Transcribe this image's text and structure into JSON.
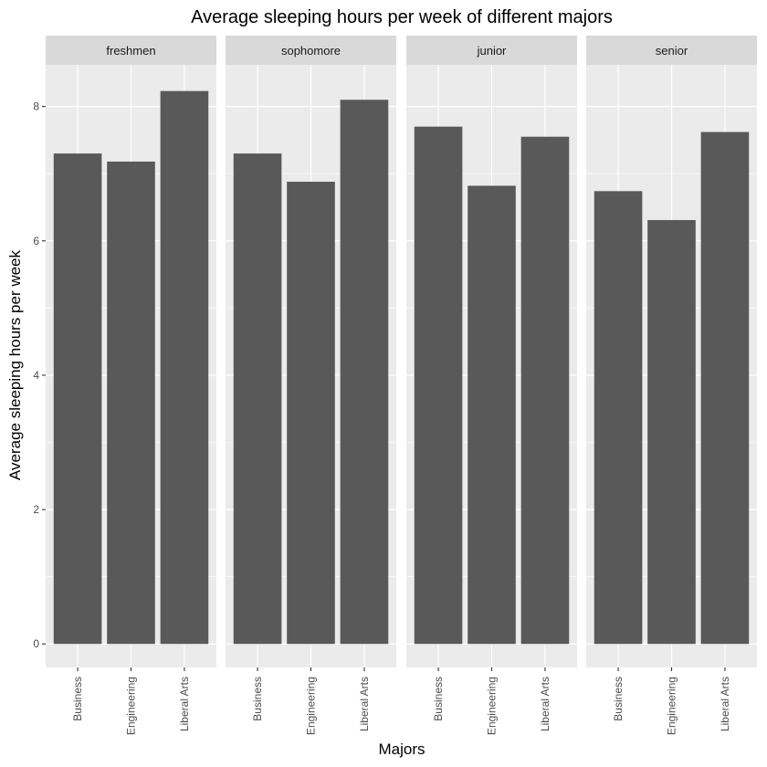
{
  "chart_data": {
    "type": "bar",
    "title": "Average sleeping hours per week of different majors",
    "xlabel": "Majors",
    "ylabel": "Average sleeping hours per week",
    "categories": [
      "Business",
      "Engineering",
      "Liberal Arts"
    ],
    "facets": [
      {
        "name": "freshmen",
        "values": [
          7.3,
          7.18,
          8.23
        ]
      },
      {
        "name": "sophomore",
        "values": [
          7.3,
          6.88,
          8.1
        ]
      },
      {
        "name": "junior",
        "values": [
          7.7,
          6.82,
          7.55
        ]
      },
      {
        "name": "senior",
        "values": [
          6.74,
          6.31,
          7.62
        ]
      }
    ],
    "ylim": [
      -0.35,
      8.62
    ],
    "yticks": [
      0,
      2,
      4,
      6,
      8
    ],
    "grid": true,
    "colors": {
      "bar": "#595959",
      "panel": "#ebebeb",
      "strip": "#d9d9d9",
      "grid": "#ffffff"
    }
  }
}
